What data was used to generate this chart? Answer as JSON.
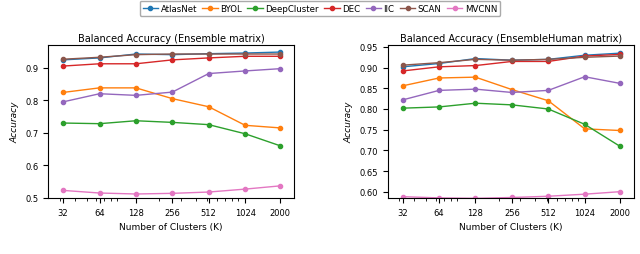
{
  "x": [
    32,
    64,
    128,
    256,
    512,
    1024,
    2000
  ],
  "left_title": "Balanced Accuracy (Ensemble matrix)",
  "right_title": "Balanced Accuracy (EnsembleHuman matrix)",
  "xlabel": "Number of Clusters (K)",
  "ylabel": "Accuracy",
  "legend_labels": [
    "AtlasNet",
    "BYOL",
    "DeepCluster",
    "DEC",
    "IIC",
    "SCAN",
    "MVCNN"
  ],
  "colors": [
    "#1f77b4",
    "#ff7f0e",
    "#2ca02c",
    "#d62728",
    "#9467bd",
    "#8c564b",
    "#e377c2"
  ],
  "left_ylim": [
    0.5,
    0.97
  ],
  "right_ylim": [
    0.585,
    0.955
  ],
  "left_yticks": [
    0.5,
    0.6,
    0.7,
    0.8,
    0.9
  ],
  "right_yticks": [
    0.6,
    0.65,
    0.7,
    0.75,
    0.8,
    0.85,
    0.9,
    0.95
  ],
  "left_data": {
    "AtlasNet": [
      0.924,
      0.93,
      0.942,
      0.94,
      0.943,
      0.945,
      0.948
    ],
    "BYOL": [
      0.824,
      0.838,
      0.838,
      0.805,
      0.78,
      0.723,
      0.715
    ],
    "DeepCluster": [
      0.73,
      0.728,
      0.737,
      0.732,
      0.725,
      0.697,
      0.66
    ],
    "DEC": [
      0.905,
      0.912,
      0.912,
      0.924,
      0.93,
      0.935,
      0.935
    ],
    "IIC": [
      0.795,
      0.82,
      0.815,
      0.825,
      0.882,
      0.89,
      0.897
    ],
    "SCAN": [
      0.926,
      0.932,
      0.94,
      0.942,
      0.942,
      0.942,
      0.942
    ],
    "MVCNN": [
      0.523,
      0.515,
      0.512,
      0.514,
      0.518,
      0.527,
      0.537
    ]
  },
  "right_data": {
    "AtlasNet": [
      0.902,
      0.91,
      0.922,
      0.918,
      0.92,
      0.93,
      0.935
    ],
    "BYOL": [
      0.856,
      0.875,
      0.877,
      0.847,
      0.82,
      0.752,
      0.748
    ],
    "DeepCluster": [
      0.802,
      0.805,
      0.814,
      0.81,
      0.8,
      0.763,
      0.71
    ],
    "DEC": [
      0.892,
      0.902,
      0.905,
      0.915,
      0.915,
      0.928,
      0.932
    ],
    "IIC": [
      0.822,
      0.845,
      0.848,
      0.84,
      0.845,
      0.878,
      0.862
    ],
    "SCAN": [
      0.906,
      0.912,
      0.92,
      0.918,
      0.92,
      0.925,
      0.928
    ],
    "MVCNN": [
      0.588,
      0.585,
      0.584,
      0.586,
      0.589,
      0.594,
      0.6
    ]
  }
}
